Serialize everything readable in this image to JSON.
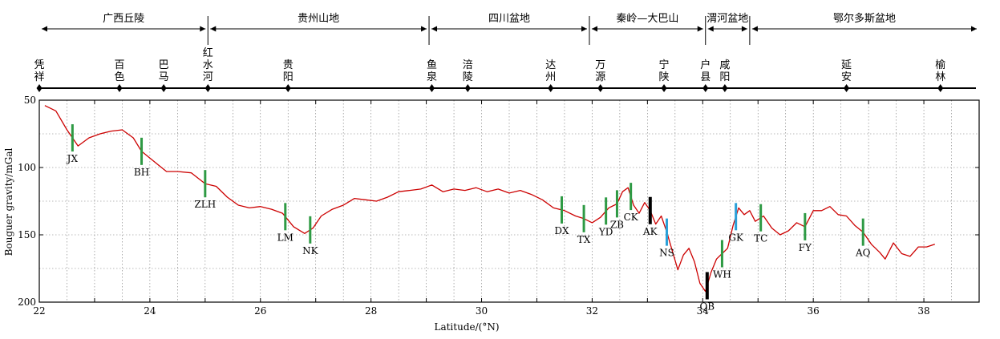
{
  "chart_data": {
    "type": "line",
    "xlabel": "Latitude/(°N)",
    "ylabel": "Bouguer gravity/mGal",
    "xlim": [
      22,
      39
    ],
    "ylim": [
      200,
      50
    ],
    "y_inverted": true,
    "x_ticks": [
      22,
      24,
      26,
      28,
      30,
      32,
      34,
      36,
      38
    ],
    "y_ticks": [
      50,
      100,
      150,
      200
    ],
    "grid": true,
    "line_color": "#cc0000",
    "regions": [
      {
        "label": "广西丘陵",
        "from": 22,
        "to": 25.05
      },
      {
        "label": "贵州山地",
        "from": 25.05,
        "to": 29.05
      },
      {
        "label": "四川盆地",
        "from": 29.05,
        "to": 31.95
      },
      {
        "label": "秦岭—大巴山",
        "from": 31.95,
        "to": 34.05
      },
      {
        "label": "渭河盆地",
        "from": 34.05,
        "to": 34.85
      },
      {
        "label": "鄂尔多斯盆地",
        "from": 34.85,
        "to": 39
      }
    ],
    "places": [
      {
        "label": "凭祥",
        "lat": 22.0
      },
      {
        "label": "百色",
        "lat": 23.45
      },
      {
        "label": "巴马",
        "lat": 24.25
      },
      {
        "label": "红水河",
        "lat": 25.05
      },
      {
        "label": "贵阳",
        "lat": 26.5
      },
      {
        "label": "鱼泉",
        "lat": 29.1
      },
      {
        "label": "涪陵",
        "lat": 29.75
      },
      {
        "label": "达州",
        "lat": 31.25
      },
      {
        "label": "万源",
        "lat": 32.15
      },
      {
        "label": "宁陕",
        "lat": 33.3
      },
      {
        "label": "户县",
        "lat": 34.05
      },
      {
        "label": "咸阳",
        "lat": 34.4
      },
      {
        "label": "延安",
        "lat": 36.6
      },
      {
        "label": "榆林",
        "lat": 38.3
      }
    ],
    "series": [
      {
        "x": [
          22.1,
          22.3,
          22.5,
          22.7,
          22.9,
          23.1,
          23.3,
          23.5,
          23.7,
          23.85,
          24.0,
          24.15,
          24.3,
          24.5,
          24.75,
          25.0,
          25.2,
          25.4,
          25.6,
          25.8,
          26.0,
          26.2,
          26.4,
          26.6,
          26.8,
          26.95,
          27.1,
          27.3,
          27.5,
          27.7,
          27.9,
          28.1,
          28.3,
          28.5,
          28.7,
          28.9,
          29.1,
          29.3,
          29.5,
          29.7,
          29.9,
          30.1,
          30.3,
          30.5,
          30.7,
          30.9,
          31.1,
          31.3,
          31.5,
          31.7,
          31.85,
          32.0,
          32.15,
          32.3,
          32.45,
          32.55,
          32.65,
          32.75,
          32.85,
          32.95,
          33.05,
          33.15,
          33.25,
          33.35,
          33.45,
          33.55,
          33.65,
          33.75,
          33.85,
          33.95,
          34.05,
          34.15,
          34.25,
          34.35,
          34.45,
          34.55,
          34.65,
          34.75,
          34.85,
          34.95,
          35.1,
          35.25,
          35.4,
          35.55,
          35.7,
          35.85,
          36.0,
          36.15,
          36.3,
          36.45,
          36.6,
          36.75,
          36.9,
          37.05,
          37.2,
          37.3,
          37.45,
          37.6,
          37.75,
          37.9,
          38.05,
          38.2
        ],
        "y": [
          54,
          58,
          72,
          84,
          78,
          75,
          73,
          72,
          78,
          88,
          93,
          98,
          103,
          103,
          104,
          112,
          114,
          122,
          128,
          130,
          129,
          131,
          134,
          144,
          149,
          145,
          136,
          131,
          128,
          123,
          124,
          125,
          122,
          118,
          117,
          116,
          113,
          118,
          116,
          117,
          115,
          118,
          116,
          119,
          117,
          120,
          124,
          130,
          132,
          136,
          138,
          141,
          137,
          130,
          127,
          118,
          115,
          128,
          134,
          126,
          132,
          142,
          136,
          148,
          162,
          176,
          165,
          160,
          170,
          186,
          192,
          178,
          168,
          164,
          160,
          143,
          130,
          135,
          132,
          140,
          136,
          145,
          150,
          147,
          141,
          144,
          132,
          132,
          129,
          135,
          136,
          143,
          148,
          157,
          163,
          168,
          156,
          164,
          166,
          159,
          159,
          157
        ]
      }
    ],
    "markers": [
      {
        "label": "JX",
        "lat": 22.6,
        "color": "#2e9a44"
      },
      {
        "label": "BH",
        "lat": 23.85,
        "color": "#2e9a44"
      },
      {
        "label": "ZLH",
        "lat": 25.0,
        "color": "#2e9a44"
      },
      {
        "label": "LM",
        "lat": 26.45,
        "color": "#2e9a44"
      },
      {
        "label": "NK",
        "lat": 26.9,
        "color": "#2e9a44"
      },
      {
        "label": "DX",
        "lat": 31.45,
        "color": "#2e9a44"
      },
      {
        "label": "TX",
        "lat": 31.85,
        "color": "#2e9a44"
      },
      {
        "label": "YD",
        "lat": 32.25,
        "color": "#2e9a44"
      },
      {
        "label": "ZB",
        "lat": 32.45,
        "color": "#2e9a44"
      },
      {
        "label": "CK",
        "lat": 32.7,
        "color": "#2e9a44"
      },
      {
        "label": "AK",
        "lat": 33.05,
        "color": "#000000"
      },
      {
        "label": "NS",
        "lat": 33.35,
        "color": "#2aa0d8"
      },
      {
        "label": "QB",
        "lat": 34.08,
        "color": "#000000"
      },
      {
        "label": "WH",
        "lat": 34.35,
        "color": "#2e9a44"
      },
      {
        "label": "GK",
        "lat": 34.6,
        "color": "#2aa0d8"
      },
      {
        "label": "TC",
        "lat": 35.05,
        "color": "#2e9a44"
      },
      {
        "label": "FY",
        "lat": 35.85,
        "color": "#2e9a44"
      },
      {
        "label": "AQ",
        "lat": 36.9,
        "color": "#2e9a44"
      }
    ]
  }
}
